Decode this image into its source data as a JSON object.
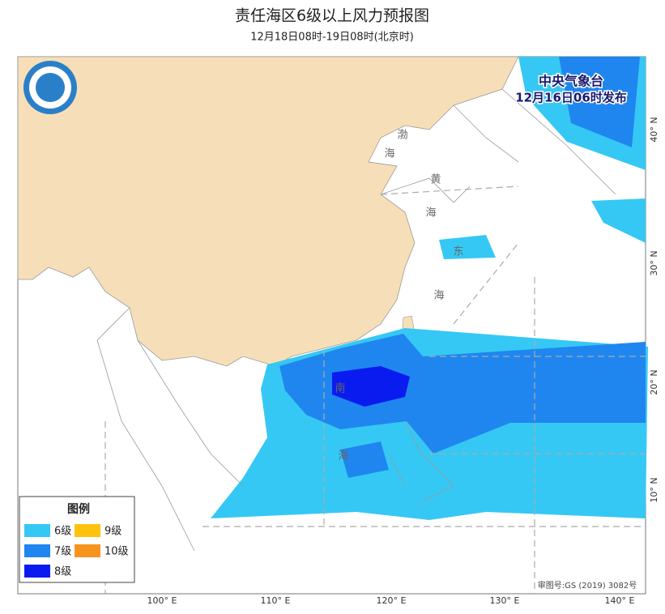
{
  "header": {
    "title": "责任海区6级以上风力预报图",
    "subtitle": "12月18日08时-19日08时(北京时)"
  },
  "map": {
    "agency": "中央气象台",
    "issued": "12月16日06时发布",
    "sea_labels": [
      "渤",
      "海",
      "黄",
      "海",
      "东",
      "海",
      "南",
      "海"
    ],
    "lon_labels": [
      "100° E",
      "110° E",
      "120° E",
      "130° E",
      "140° E"
    ],
    "lat_labels": [
      "10° N",
      "20° N",
      "30° N",
      "40° N"
    ],
    "approval": "审图号:GS (2019) 3082号"
  },
  "legend": {
    "title": "图例",
    "items": [
      {
        "label": "6级",
        "color": "#36c8f4"
      },
      {
        "label": "7级",
        "color": "#1f86ef"
      },
      {
        "label": "8级",
        "color": "#0a1bf0"
      },
      {
        "label": "9级",
        "color": "#ffc20e"
      },
      {
        "label": "10级",
        "color": "#f7941d"
      }
    ]
  }
}
